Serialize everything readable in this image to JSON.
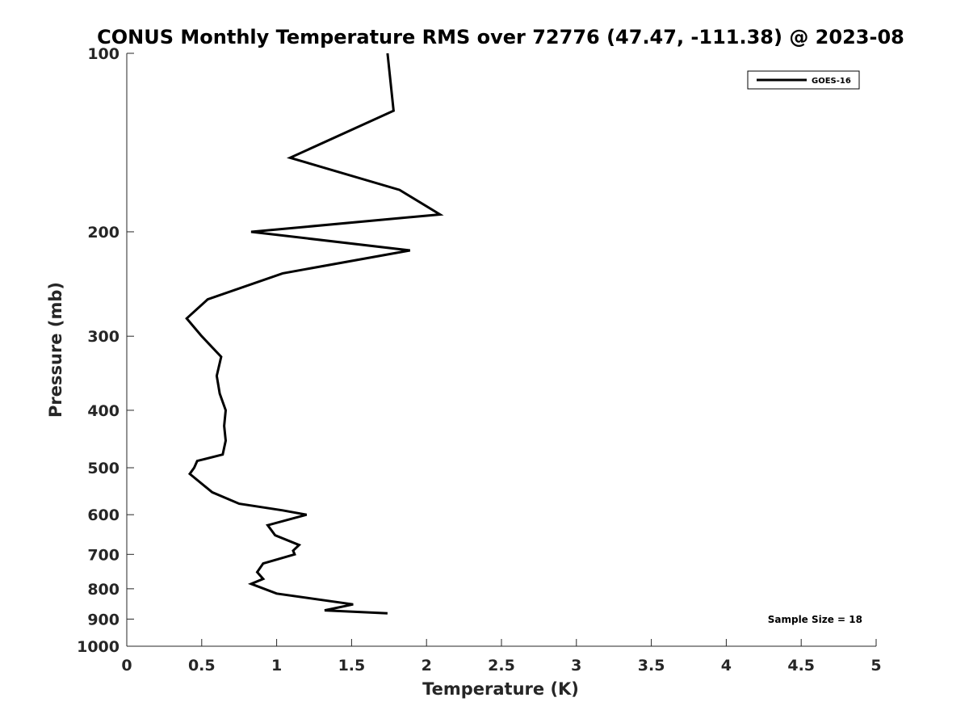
{
  "chart_data": {
    "type": "line",
    "title": "CONUS Monthly Temperature RMS over 72776 (47.47, -111.38) @ 2023-08",
    "xlabel": "Temperature (K)",
    "ylabel": "Pressure (mb)",
    "xlim": [
      0,
      5
    ],
    "ylim": [
      100,
      1000
    ],
    "y_scale": "log",
    "y_reversed": true,
    "x_ticks": [
      0,
      0.5,
      1,
      1.5,
      2,
      2.5,
      3,
      3.5,
      4,
      4.5,
      5
    ],
    "x_tick_labels": [
      "0",
      "0.5",
      "1",
      "1.5",
      "2",
      "2.5",
      "3",
      "3.5",
      "4",
      "4.5",
      "5"
    ],
    "y_ticks": [
      100,
      200,
      300,
      400,
      500,
      600,
      700,
      800,
      900,
      1000
    ],
    "y_tick_labels": [
      "100",
      "200",
      "300",
      "400",
      "500",
      "600",
      "700",
      "800",
      "900",
      "1000"
    ],
    "grid": false,
    "legend_position": "top-right",
    "annotation": "Sample Size = 18",
    "series": [
      {
        "name": "GOES-16",
        "color": "#000000",
        "points": [
          [
            1.74,
            100
          ],
          [
            1.78,
            125
          ],
          [
            1.09,
            150
          ],
          [
            1.82,
            170
          ],
          [
            2.09,
            187
          ],
          [
            0.83,
            200
          ],
          [
            1.89,
            215
          ],
          [
            1.04,
            235
          ],
          [
            0.54,
            260
          ],
          [
            0.4,
            280
          ],
          [
            0.5,
            300
          ],
          [
            0.63,
            325
          ],
          [
            0.6,
            350
          ],
          [
            0.62,
            375
          ],
          [
            0.66,
            400
          ],
          [
            0.65,
            425
          ],
          [
            0.66,
            450
          ],
          [
            0.64,
            475
          ],
          [
            0.47,
            487
          ],
          [
            0.45,
            500
          ],
          [
            0.42,
            512
          ],
          [
            0.57,
            550
          ],
          [
            0.75,
            575
          ],
          [
            1.04,
            590
          ],
          [
            1.2,
            600
          ],
          [
            0.94,
            625
          ],
          [
            0.99,
            650
          ],
          [
            1.15,
            675
          ],
          [
            1.11,
            690
          ],
          [
            1.12,
            700
          ],
          [
            0.91,
            725
          ],
          [
            0.87,
            750
          ],
          [
            0.91,
            770
          ],
          [
            0.83,
            785
          ],
          [
            1.0,
            815
          ],
          [
            1.51,
            850
          ],
          [
            1.32,
            870
          ],
          [
            1.74,
            880
          ]
        ]
      }
    ]
  }
}
